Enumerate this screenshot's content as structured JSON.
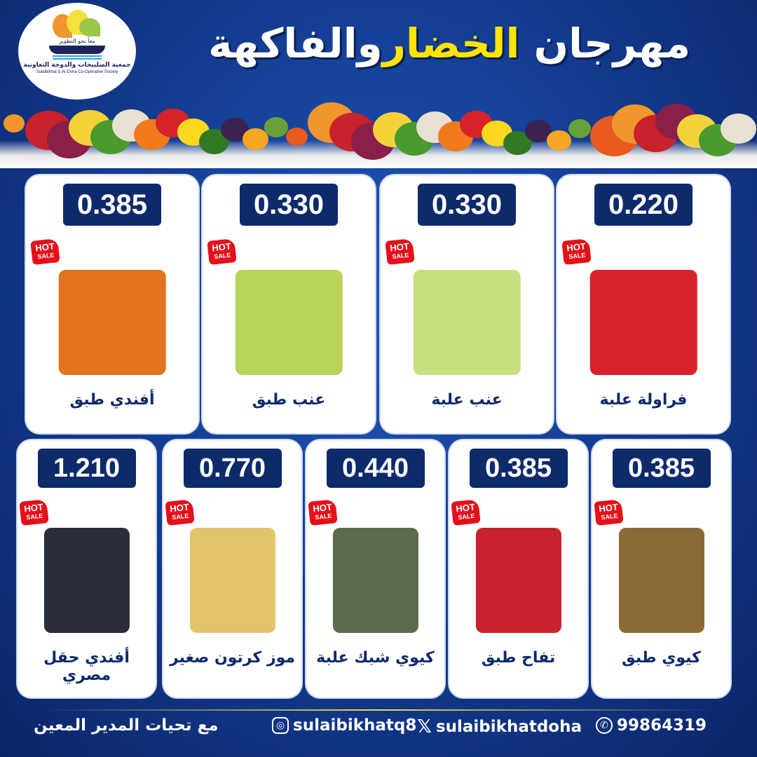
{
  "logo": {
    "slogan": "معاً نحو التطوير",
    "name_ar": "جمعية الصليبخات والدوحة التعاونية",
    "name_en": "Sulaibikhat & Al-Doha Co-Operative Society"
  },
  "title": {
    "part1": "مهرجان",
    "highlight": "الخضار",
    "part2": "والفاكهة"
  },
  "badge": {
    "hot": "HOT",
    "sale": "SALE"
  },
  "colors": {
    "background": "#12398c",
    "price_box": "#0d2a6b",
    "title_highlight": "#ffe400",
    "badge": "#e3101a"
  },
  "row1": [
    {
      "price": "0.385",
      "name": "أفندي طبق",
      "img": "#e2731f"
    },
    {
      "price": "0.330",
      "name": "عنب طبق",
      "img": "#b7d35a"
    },
    {
      "price": "0.330",
      "name": "عنب علبة",
      "img": "#c8df80"
    },
    {
      "price": "0.220",
      "name": "فراولة علبة",
      "img": "#d7222b"
    }
  ],
  "row2": [
    {
      "price": "1.210",
      "name": "أفندي حقل مصري",
      "img": "#2a2d3a"
    },
    {
      "price": "0.770",
      "name": "موز كرتون صغير",
      "img": "#e4c46a"
    },
    {
      "price": "0.440",
      "name": "كيوي شبك علبة",
      "img": "#5c6a4a"
    },
    {
      "price": "0.385",
      "name": "تفاح طبق",
      "img": "#c8222c"
    },
    {
      "price": "0.385",
      "name": "كيوي طبق",
      "img": "#8b6a36"
    }
  ],
  "footer": {
    "greeting": "مع تحيات المدير المعين",
    "instagram": "sulaibikhatq8",
    "x": "sulaibikhatdoha",
    "whatsapp": "99864319"
  }
}
